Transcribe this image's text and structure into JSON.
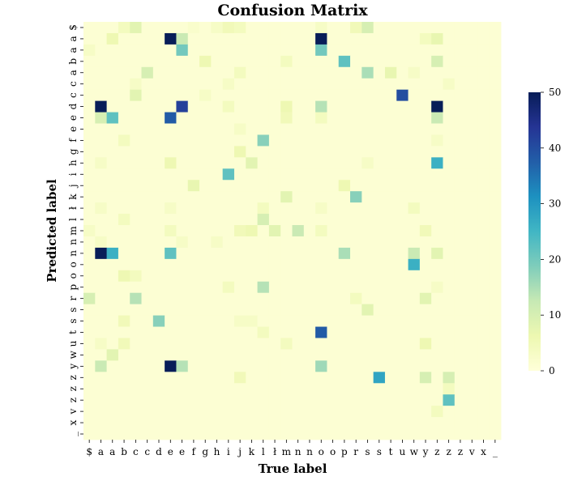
{
  "chart_data": {
    "type": "heatmap",
    "title": "Confusion Matrix",
    "xlabel": "True label",
    "ylabel": "Predicted label",
    "x_tick_labels": [
      "$",
      "a",
      "a",
      "b",
      "c",
      "c",
      "d",
      "e",
      "e",
      "f",
      "g",
      "h",
      "i",
      "j",
      "k",
      "l",
      "ł",
      "m",
      "n",
      "n",
      "o",
      "o",
      "p",
      "r",
      "s",
      "s",
      "t",
      "u",
      "w",
      "y",
      "z",
      "z",
      "z",
      "v",
      "x",
      "_"
    ],
    "y_tick_labels": [
      "$",
      "a",
      "a",
      "b",
      "a",
      "c",
      "c",
      "d",
      "e",
      "e",
      "f",
      "g",
      "h",
      "i",
      "j",
      "k",
      "ł",
      "l",
      "m",
      "n",
      "n",
      "o",
      "o",
      "p",
      "r",
      "s",
      "s",
      "t",
      "u",
      "w",
      "y",
      "z",
      "z",
      "z",
      "v",
      "x",
      "_"
    ],
    "colorbar": {
      "min": 0,
      "max": 50,
      "ticks": [
        0,
        10,
        20,
        30,
        40,
        50
      ]
    },
    "colormap": "YlGnBu",
    "background_value": 1,
    "cells": [
      [
        0,
        3,
        4
      ],
      [
        0,
        4,
        8
      ],
      [
        0,
        9,
        2
      ],
      [
        0,
        11,
        3
      ],
      [
        0,
        12,
        5
      ],
      [
        0,
        13,
        4
      ],
      [
        0,
        20,
        3
      ],
      [
        0,
        23,
        5
      ],
      [
        0,
        24,
        10
      ],
      [
        1,
        2,
        6
      ],
      [
        1,
        7,
        50
      ],
      [
        1,
        8,
        12
      ],
      [
        1,
        20,
        50
      ],
      [
        1,
        29,
        4
      ],
      [
        1,
        30,
        7
      ],
      [
        2,
        0,
        3
      ],
      [
        2,
        8,
        20
      ],
      [
        2,
        20,
        20
      ],
      [
        3,
        10,
        6
      ],
      [
        3,
        17,
        4
      ],
      [
        3,
        22,
        22
      ],
      [
        3,
        30,
        10
      ],
      [
        4,
        5,
        10
      ],
      [
        4,
        13,
        4
      ],
      [
        4,
        24,
        15
      ],
      [
        4,
        26,
        7
      ],
      [
        4,
        28,
        3
      ],
      [
        5,
        4,
        3
      ],
      [
        5,
        12,
        3
      ],
      [
        5,
        31,
        3
      ],
      [
        6,
        4,
        8
      ],
      [
        6,
        10,
        3
      ],
      [
        6,
        27,
        40
      ],
      [
        7,
        1,
        50
      ],
      [
        7,
        8,
        42
      ],
      [
        7,
        12,
        4
      ],
      [
        7,
        17,
        6
      ],
      [
        7,
        20,
        14
      ],
      [
        7,
        30,
        50
      ],
      [
        8,
        1,
        10
      ],
      [
        8,
        2,
        22
      ],
      [
        8,
        7,
        38
      ],
      [
        8,
        17,
        5
      ],
      [
        8,
        20,
        4
      ],
      [
        8,
        30,
        12
      ],
      [
        9,
        13,
        3
      ],
      [
        10,
        3,
        4
      ],
      [
        10,
        15,
        18
      ],
      [
        10,
        30,
        3
      ],
      [
        11,
        13,
        6
      ],
      [
        12,
        1,
        3
      ],
      [
        12,
        7,
        6
      ],
      [
        12,
        14,
        8
      ],
      [
        12,
        24,
        3
      ],
      [
        12,
        30,
        26
      ],
      [
        13,
        12,
        22
      ],
      [
        14,
        9,
        7
      ],
      [
        14,
        22,
        6
      ],
      [
        15,
        17,
        8
      ],
      [
        15,
        23,
        18
      ],
      [
        16,
        1,
        3
      ],
      [
        16,
        7,
        3
      ],
      [
        16,
        15,
        4
      ],
      [
        16,
        20,
        3
      ],
      [
        16,
        28,
        4
      ],
      [
        17,
        3,
        4
      ],
      [
        17,
        15,
        10
      ],
      [
        18,
        0,
        3
      ],
      [
        18,
        7,
        4
      ],
      [
        18,
        13,
        5
      ],
      [
        18,
        14,
        6
      ],
      [
        18,
        16,
        8
      ],
      [
        18,
        18,
        12
      ],
      [
        18,
        20,
        4
      ],
      [
        18,
        29,
        5
      ],
      [
        19,
        1,
        3
      ],
      [
        19,
        8,
        3
      ],
      [
        19,
        11,
        3
      ],
      [
        20,
        1,
        50
      ],
      [
        20,
        2,
        26
      ],
      [
        20,
        7,
        22
      ],
      [
        20,
        22,
        15
      ],
      [
        20,
        28,
        12
      ],
      [
        20,
        30,
        8
      ],
      [
        21,
        28,
        26
      ],
      [
        22,
        3,
        6
      ],
      [
        22,
        4,
        4
      ],
      [
        23,
        12,
        4
      ],
      [
        23,
        15,
        14
      ],
      [
        23,
        30,
        3
      ],
      [
        24,
        0,
        10
      ],
      [
        24,
        4,
        14
      ],
      [
        24,
        23,
        4
      ],
      [
        24,
        29,
        8
      ],
      [
        25,
        24,
        8
      ],
      [
        26,
        3,
        5
      ],
      [
        26,
        6,
        18
      ],
      [
        26,
        13,
        3
      ],
      [
        26,
        14,
        3
      ],
      [
        27,
        15,
        4
      ],
      [
        27,
        20,
        38
      ],
      [
        28,
        1,
        3
      ],
      [
        28,
        3,
        5
      ],
      [
        28,
        17,
        4
      ],
      [
        28,
        29,
        6
      ],
      [
        29,
        2,
        8
      ],
      [
        30,
        1,
        12
      ],
      [
        30,
        7,
        50
      ],
      [
        30,
        8,
        14
      ],
      [
        30,
        20,
        16
      ],
      [
        31,
        13,
        5
      ],
      [
        31,
        25,
        28
      ],
      [
        31,
        29,
        10
      ],
      [
        31,
        31,
        10
      ],
      [
        32,
        31,
        4
      ],
      [
        33,
        31,
        22
      ],
      [
        34,
        30,
        4
      ]
    ]
  }
}
